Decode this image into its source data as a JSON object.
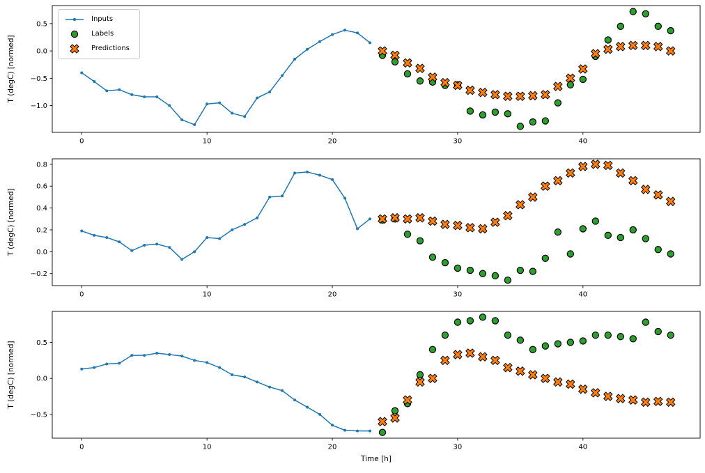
{
  "figure": {
    "xlabel": "Time [h]",
    "ylabel": "T (degC) [normed]",
    "background": "#ffffff",
    "frame_color": "#000000"
  },
  "legend": {
    "position": "upper-left",
    "items": [
      {
        "label": "Inputs",
        "marker": "line-dot",
        "color": "#1f77b4"
      },
      {
        "label": "Labels",
        "marker": "circle",
        "color": "#2ca02c",
        "edge_color": "#000000"
      },
      {
        "label": "Predictions",
        "marker": "X",
        "color": "#ff7f0e",
        "edge_color": "#000000"
      }
    ]
  },
  "chart_data": [
    {
      "type": "line",
      "ylabel": "T (degC) [normed]",
      "xlabel": "",
      "xlim": [
        -2.35,
        49.35
      ],
      "ylim": [
        -1.49,
        0.83
      ],
      "xticks": [
        0,
        10,
        20,
        30,
        40
      ],
      "yticks": [
        0.5,
        0.0,
        -0.5,
        -1.0
      ],
      "series": [
        {
          "name": "Inputs",
          "style": "line-dot",
          "color": "#1f77b4",
          "x": [
            0,
            1,
            2,
            3,
            4,
            5,
            6,
            7,
            8,
            9,
            10,
            11,
            12,
            13,
            14,
            15,
            16,
            17,
            18,
            19,
            20,
            21,
            22,
            23
          ],
          "y": [
            -0.4,
            -0.56,
            -0.73,
            -0.71,
            -0.8,
            -0.84,
            -0.84,
            -1.0,
            -1.26,
            -1.35,
            -0.97,
            -0.95,
            -1.14,
            -1.2,
            -0.86,
            -0.75,
            -0.45,
            -0.15,
            0.03,
            0.17,
            0.3,
            0.38,
            0.33,
            0.15
          ]
        },
        {
          "name": "Labels",
          "style": "circle",
          "color": "#2ca02c",
          "edge_color": "#000000",
          "x": [
            24,
            25,
            26,
            27,
            28,
            29,
            30,
            31,
            32,
            33,
            34,
            35,
            36,
            37,
            38,
            39,
            40,
            41,
            42,
            43,
            44,
            45,
            46,
            47
          ],
          "y": [
            -0.08,
            -0.2,
            -0.42,
            -0.55,
            -0.57,
            -0.63,
            -0.62,
            -1.1,
            -1.17,
            -1.12,
            -1.15,
            -1.38,
            -1.3,
            -1.28,
            -0.95,
            -0.62,
            -0.52,
            -0.1,
            0.2,
            0.45,
            0.72,
            0.68,
            0.45,
            0.37
          ]
        },
        {
          "name": "Predictions",
          "style": "X",
          "color": "#ff7f0e",
          "edge_color": "#000000",
          "x": [
            24,
            25,
            26,
            27,
            28,
            29,
            30,
            31,
            32,
            33,
            34,
            35,
            36,
            37,
            38,
            39,
            40,
            41,
            42,
            43,
            44,
            45,
            46,
            47
          ],
          "y": [
            0.0,
            -0.08,
            -0.22,
            -0.32,
            -0.48,
            -0.58,
            -0.63,
            -0.72,
            -0.76,
            -0.8,
            -0.83,
            -0.83,
            -0.82,
            -0.8,
            -0.65,
            -0.5,
            -0.33,
            -0.05,
            0.03,
            0.08,
            0.1,
            0.1,
            0.08,
            0.0
          ]
        }
      ]
    },
    {
      "type": "line",
      "ylabel": "T (degC) [normed]",
      "xlabel": "",
      "xlim": [
        -2.35,
        49.35
      ],
      "ylim": [
        -0.31,
        0.85
      ],
      "xticks": [
        0,
        10,
        20,
        30,
        40
      ],
      "yticks": [
        0.8,
        0.6,
        0.4,
        0.2,
        0.0,
        -0.2
      ],
      "series": [
        {
          "name": "Inputs",
          "style": "line-dot",
          "color": "#1f77b4",
          "x": [
            0,
            1,
            2,
            3,
            4,
            5,
            6,
            7,
            8,
            9,
            10,
            11,
            12,
            13,
            14,
            15,
            16,
            17,
            18,
            19,
            20,
            21,
            22,
            23
          ],
          "y": [
            0.19,
            0.15,
            0.13,
            0.09,
            0.01,
            0.06,
            0.07,
            0.04,
            -0.07,
            0.0,
            0.13,
            0.12,
            0.2,
            0.25,
            0.31,
            0.5,
            0.51,
            0.72,
            0.73,
            0.7,
            0.66,
            0.49,
            0.21,
            0.3
          ]
        },
        {
          "name": "Labels",
          "style": "circle",
          "color": "#2ca02c",
          "edge_color": "#000000",
          "x": [
            24,
            25,
            26,
            27,
            28,
            29,
            30,
            31,
            32,
            33,
            34,
            35,
            36,
            37,
            38,
            39,
            40,
            41,
            42,
            43,
            44,
            45,
            46,
            47
          ],
          "y": [
            0.29,
            0.3,
            0.16,
            0.1,
            -0.05,
            -0.1,
            -0.15,
            -0.17,
            -0.2,
            -0.22,
            -0.26,
            -0.17,
            -0.18,
            -0.06,
            0.18,
            -0.02,
            0.21,
            0.28,
            0.15,
            0.13,
            0.2,
            0.12,
            0.02,
            -0.02
          ]
        },
        {
          "name": "Predictions",
          "style": "X",
          "color": "#ff7f0e",
          "edge_color": "#000000",
          "x": [
            24,
            25,
            26,
            27,
            28,
            29,
            30,
            31,
            32,
            33,
            34,
            35,
            36,
            37,
            38,
            39,
            40,
            41,
            42,
            43,
            44,
            45,
            46,
            47
          ],
          "y": [
            0.3,
            0.31,
            0.3,
            0.31,
            0.28,
            0.25,
            0.24,
            0.22,
            0.21,
            0.27,
            0.33,
            0.43,
            0.5,
            0.6,
            0.65,
            0.72,
            0.78,
            0.8,
            0.79,
            0.72,
            0.65,
            0.57,
            0.52,
            0.46
          ]
        }
      ]
    },
    {
      "type": "line",
      "ylabel": "T (degC) [normed]",
      "xlabel": "Time [h]",
      "xlim": [
        -2.35,
        49.35
      ],
      "ylim": [
        -0.83,
        0.93
      ],
      "xticks": [
        0,
        10,
        20,
        30,
        40
      ],
      "yticks": [
        0.5,
        0.0,
        -0.5
      ],
      "series": [
        {
          "name": "Inputs",
          "style": "line-dot",
          "color": "#1f77b4",
          "x": [
            0,
            1,
            2,
            3,
            4,
            5,
            6,
            7,
            8,
            9,
            10,
            11,
            12,
            13,
            14,
            15,
            16,
            17,
            18,
            19,
            20,
            21,
            22,
            23
          ],
          "y": [
            0.13,
            0.15,
            0.2,
            0.21,
            0.32,
            0.32,
            0.35,
            0.33,
            0.31,
            0.25,
            0.22,
            0.15,
            0.05,
            0.02,
            -0.05,
            -0.12,
            -0.17,
            -0.3,
            -0.4,
            -0.5,
            -0.65,
            -0.72,
            -0.73,
            -0.73
          ]
        },
        {
          "name": "Labels",
          "style": "circle",
          "color": "#2ca02c",
          "edge_color": "#000000",
          "x": [
            24,
            25,
            26,
            27,
            28,
            29,
            30,
            31,
            32,
            33,
            34,
            35,
            36,
            37,
            38,
            39,
            40,
            41,
            42,
            43,
            44,
            45,
            46,
            47
          ],
          "y": [
            -0.75,
            -0.45,
            -0.35,
            0.05,
            0.4,
            0.6,
            0.78,
            0.8,
            0.85,
            0.8,
            0.6,
            0.53,
            0.4,
            0.45,
            0.48,
            0.5,
            0.52,
            0.6,
            0.6,
            0.58,
            0.55,
            0.78,
            0.65,
            0.6
          ]
        },
        {
          "name": "Predictions",
          "style": "X",
          "color": "#ff7f0e",
          "edge_color": "#000000",
          "x": [
            24,
            25,
            26,
            27,
            28,
            29,
            30,
            31,
            32,
            33,
            34,
            35,
            36,
            37,
            38,
            39,
            40,
            41,
            42,
            43,
            44,
            45,
            46,
            47
          ],
          "y": [
            -0.6,
            -0.55,
            -0.3,
            -0.05,
            0.0,
            0.25,
            0.33,
            0.35,
            0.3,
            0.25,
            0.15,
            0.1,
            0.05,
            0.0,
            -0.05,
            -0.08,
            -0.15,
            -0.2,
            -0.25,
            -0.28,
            -0.3,
            -0.33,
            -0.32,
            -0.33
          ]
        }
      ]
    }
  ]
}
